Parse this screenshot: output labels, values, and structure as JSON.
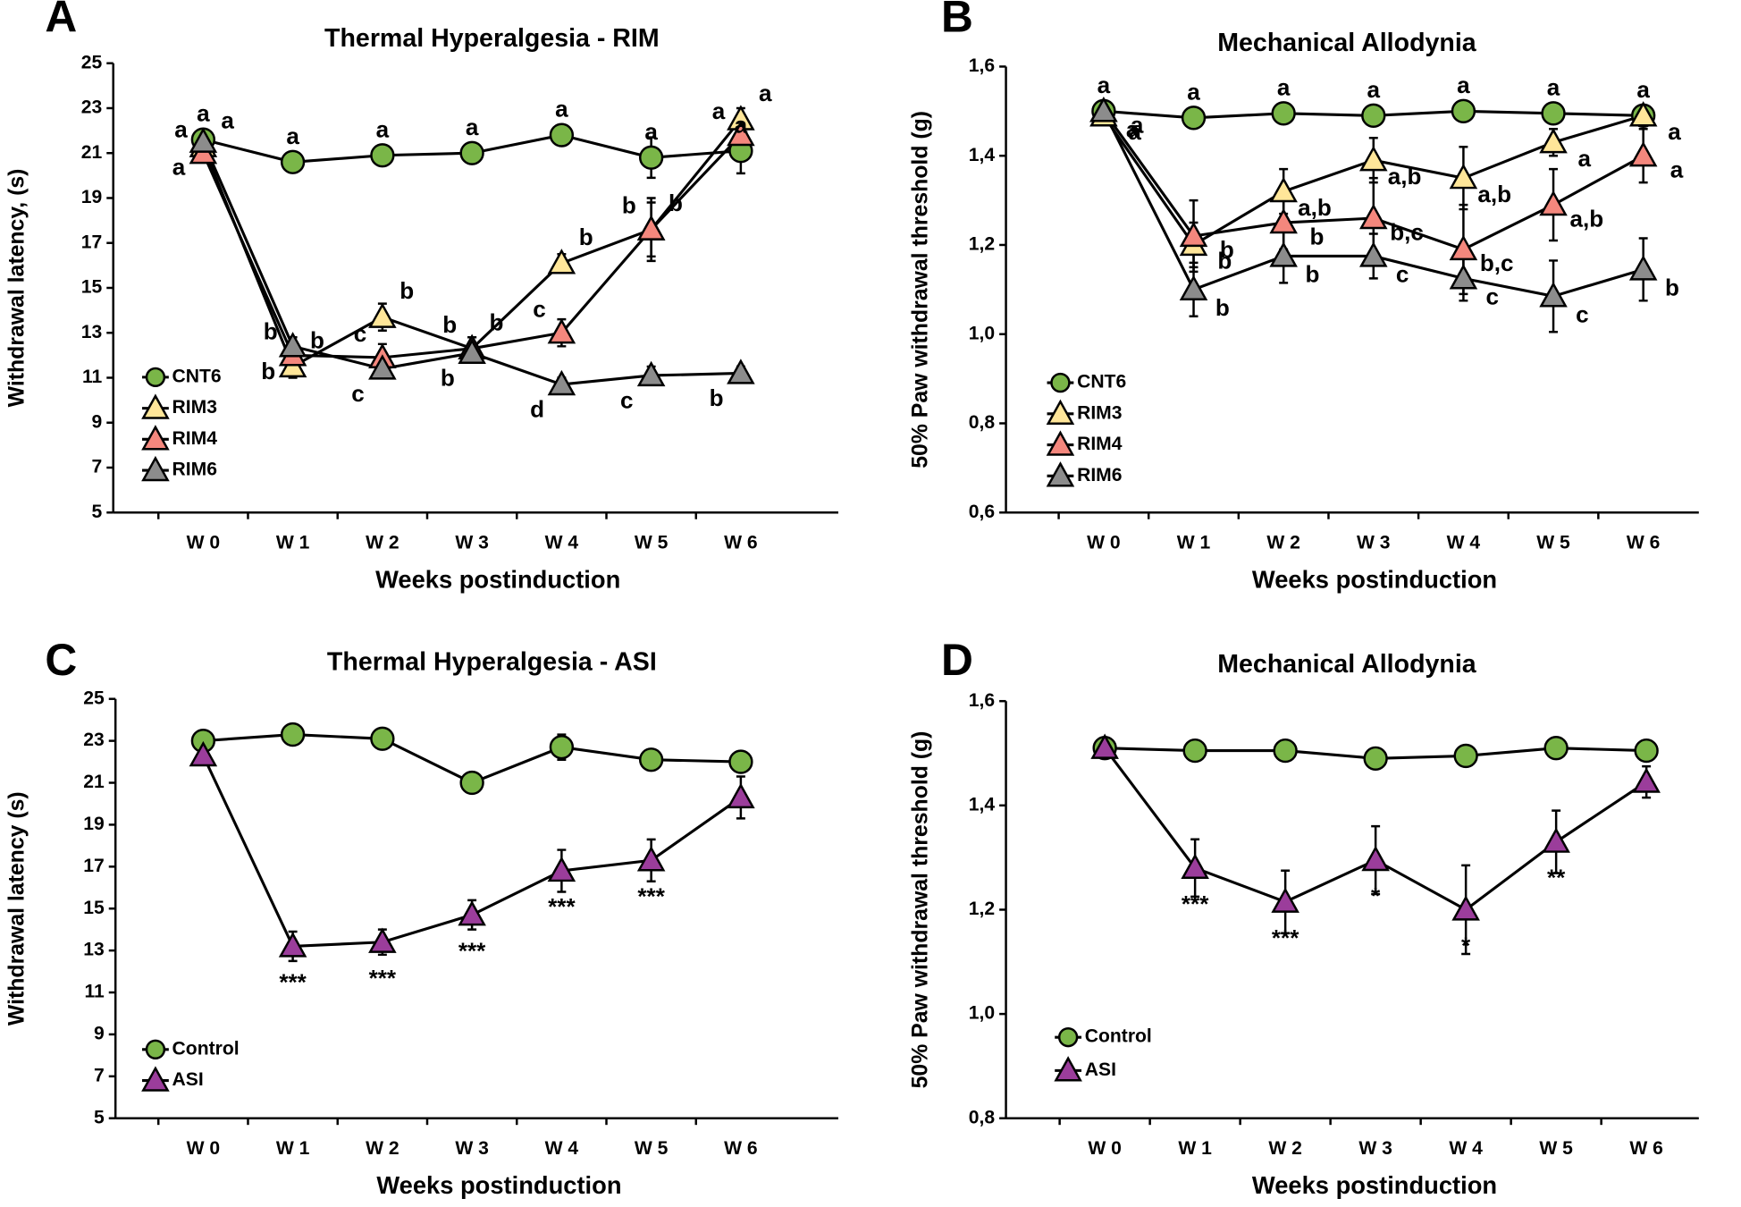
{
  "chart_data": [
    {
      "type": "line",
      "panel": "A",
      "title": "Thermal Hyperalgesia - RIM",
      "x_label": "Weeks postinduction",
      "y_label": "Withdrawal latency, (s)",
      "categories": [
        "W 0",
        "W 1",
        "W 2",
        "W 3",
        "W 4",
        "W 5",
        "W 6"
      ],
      "ylim": [
        5,
        25
      ],
      "yticks": [
        5,
        7,
        9,
        11,
        13,
        15,
        17,
        19,
        21,
        23,
        25
      ],
      "series": [
        {
          "name": "CNT6",
          "color": "#7ab648",
          "marker": "circle",
          "values": [
            21.6,
            20.6,
            20.9,
            21.0,
            21.8,
            20.8,
            21.1
          ],
          "errors": [
            0.3,
            0.3,
            0.3,
            0.3,
            0.3,
            0.9,
            1.0
          ],
          "annotations": [
            "a",
            "a",
            "a",
            "a",
            "a",
            "a",
            "a"
          ]
        },
        {
          "name": "RIM3",
          "color": "#ffe699",
          "marker": "triangle",
          "values": [
            21.3,
            11.5,
            13.7,
            12.3,
            16.1,
            17.6,
            22.5
          ],
          "errors": [
            0.3,
            0.5,
            0.6,
            0.5,
            0.4,
            1.2,
            0.5
          ],
          "annotations": [
            "a",
            "b",
            "b",
            "b",
            "b",
            "b",
            "a"
          ]
        },
        {
          "name": "RIM4",
          "color": "#f4877d",
          "marker": "triangle",
          "values": [
            21.0,
            12.0,
            11.9,
            12.3,
            13.0,
            17.6,
            21.8
          ],
          "errors": [
            0.3,
            0.4,
            0.6,
            0.5,
            0.6,
            1.4,
            0.8
          ],
          "annotations": [
            "a",
            "b",
            "c",
            "b",
            "c",
            "b",
            "a"
          ]
        },
        {
          "name": "RIM6",
          "color": "#8c8c8c",
          "marker": "triangle",
          "values": [
            21.5,
            12.4,
            11.4,
            12.1,
            10.7,
            11.1,
            11.2
          ],
          "errors": [
            0.3,
            0.4,
            0.4,
            0.4,
            0.3,
            0.4,
            0.3
          ],
          "annotations": [
            "a",
            "b",
            "c",
            "b",
            "d",
            "c",
            "b"
          ]
        }
      ]
    },
    {
      "type": "line",
      "panel": "B",
      "title": "Mechanical Allodynia",
      "x_label": "Weeks postinduction",
      "y_label": "50% Paw withdrawal threshold (g)",
      "categories": [
        "W 0",
        "W 1",
        "W 2",
        "W 3",
        "W 4",
        "W 5",
        "W 6"
      ],
      "ylim": [
        0.6,
        1.6
      ],
      "yticks": [
        {
          "value": 0.6,
          "label": "0,6"
        },
        {
          "value": 0.8,
          "label": "0,8"
        },
        {
          "value": 1.0,
          "label": "1,0"
        },
        {
          "value": 1.2,
          "label": "1,2"
        },
        {
          "value": 1.4,
          "label": "1,4"
        },
        {
          "value": 1.6,
          "label": "1,6"
        }
      ],
      "series": [
        {
          "name": "CNT6",
          "color": "#7ab648",
          "marker": "circle",
          "values": [
            1.5,
            1.485,
            1.495,
            1.49,
            1.5,
            1.495,
            1.49
          ],
          "errors": [
            0.01,
            0.01,
            0.01,
            0.01,
            0.01,
            0.01,
            0.01
          ],
          "annotations": [
            "a",
            "a",
            "a",
            "a",
            "a",
            "a",
            "a"
          ]
        },
        {
          "name": "RIM3",
          "color": "#ffe699",
          "marker": "triangle",
          "values": [
            1.49,
            1.2,
            1.32,
            1.39,
            1.35,
            1.43,
            1.49
          ],
          "errors": [
            0.01,
            0.05,
            0.05,
            0.05,
            0.07,
            0.03,
            0.02
          ],
          "annotations": [
            "a",
            "b",
            "a,b",
            "a,b",
            "a,b",
            "a",
            "a"
          ]
        },
        {
          "name": "RIM4",
          "color": "#f4877d",
          "marker": "triangle",
          "values": [
            1.5,
            1.22,
            1.25,
            1.26,
            1.19,
            1.29,
            1.4
          ],
          "errors": [
            0.01,
            0.08,
            0.06,
            0.09,
            0.1,
            0.08,
            0.06
          ],
          "annotations": [
            "a",
            "b",
            "b",
            "b,c",
            "b,c",
            "a,b",
            "a"
          ]
        },
        {
          "name": "RIM6",
          "color": "#8c8c8c",
          "marker": "triangle",
          "values": [
            1.5,
            1.1,
            1.175,
            1.175,
            1.125,
            1.085,
            1.145
          ],
          "errors": [
            0.01,
            0.06,
            0.06,
            0.05,
            0.05,
            0.08,
            0.07
          ],
          "annotations": [
            "a",
            "b",
            "b",
            "c",
            "c",
            "c",
            "b"
          ]
        }
      ]
    },
    {
      "type": "line",
      "panel": "C",
      "title": "Thermal Hyperalgesia - ASI",
      "x_label": "Weeks postinduction",
      "y_label": "Withdrawal latency (s)",
      "categories": [
        "W 0",
        "W 1",
        "W 2",
        "W 3",
        "W 4",
        "W 5",
        "W 6"
      ],
      "ylim": [
        5,
        25
      ],
      "yticks": [
        5,
        7,
        9,
        11,
        13,
        15,
        17,
        19,
        21,
        23,
        25
      ],
      "series": [
        {
          "name": "Control",
          "color": "#7ab648",
          "marker": "circle",
          "values": [
            23.0,
            23.3,
            23.1,
            21.0,
            22.7,
            22.1,
            22.0
          ],
          "errors": [
            0.2,
            0.2,
            0.2,
            0.3,
            0.6,
            0.3,
            0.3
          ],
          "annotations": [
            null,
            null,
            null,
            null,
            null,
            null,
            null
          ]
        },
        {
          "name": "ASI",
          "color": "#9b3d9b",
          "marker": "triangle",
          "values": [
            22.3,
            13.2,
            13.4,
            14.7,
            16.8,
            17.3,
            20.3
          ],
          "errors": [
            0.2,
            0.7,
            0.6,
            0.7,
            1.0,
            1.0,
            1.0
          ],
          "annotations": [
            null,
            "***",
            "***",
            "***",
            "***",
            "***",
            null
          ]
        }
      ]
    },
    {
      "type": "line",
      "panel": "D",
      "title": "Mechanical Allodynia",
      "x_label": "Weeks postinduction",
      "y_label": "50% Paw withdrawal threshold (g)",
      "categories": [
        "W 0",
        "W 1",
        "W 2",
        "W 3",
        "W 4",
        "W 5",
        "W 6"
      ],
      "ylim": [
        0.8,
        1.6
      ],
      "yticks": [
        {
          "value": 0.8,
          "label": "0,8"
        },
        {
          "value": 1.0,
          "label": "1,0"
        },
        {
          "value": 1.2,
          "label": "1,2"
        },
        {
          "value": 1.4,
          "label": "1,4"
        },
        {
          "value": 1.6,
          "label": "1,6"
        }
      ],
      "series": [
        {
          "name": "Control",
          "color": "#7ab648",
          "marker": "circle",
          "values": [
            1.51,
            1.505,
            1.505,
            1.49,
            1.495,
            1.51,
            1.505
          ],
          "errors": [
            0.005,
            0.005,
            0.005,
            0.005,
            0.005,
            0.005,
            0.005
          ],
          "annotations": [
            null,
            null,
            null,
            null,
            null,
            null,
            null
          ]
        },
        {
          "name": "ASI",
          "color": "#9b3d9b",
          "marker": "triangle",
          "values": [
            1.51,
            1.28,
            1.215,
            1.295,
            1.2,
            1.33,
            1.445
          ],
          "errors": [
            0.005,
            0.055,
            0.06,
            0.065,
            0.085,
            0.06,
            0.03
          ],
          "annotations": [
            null,
            "***",
            "***",
            "*",
            "*",
            "**",
            null
          ]
        }
      ]
    }
  ]
}
